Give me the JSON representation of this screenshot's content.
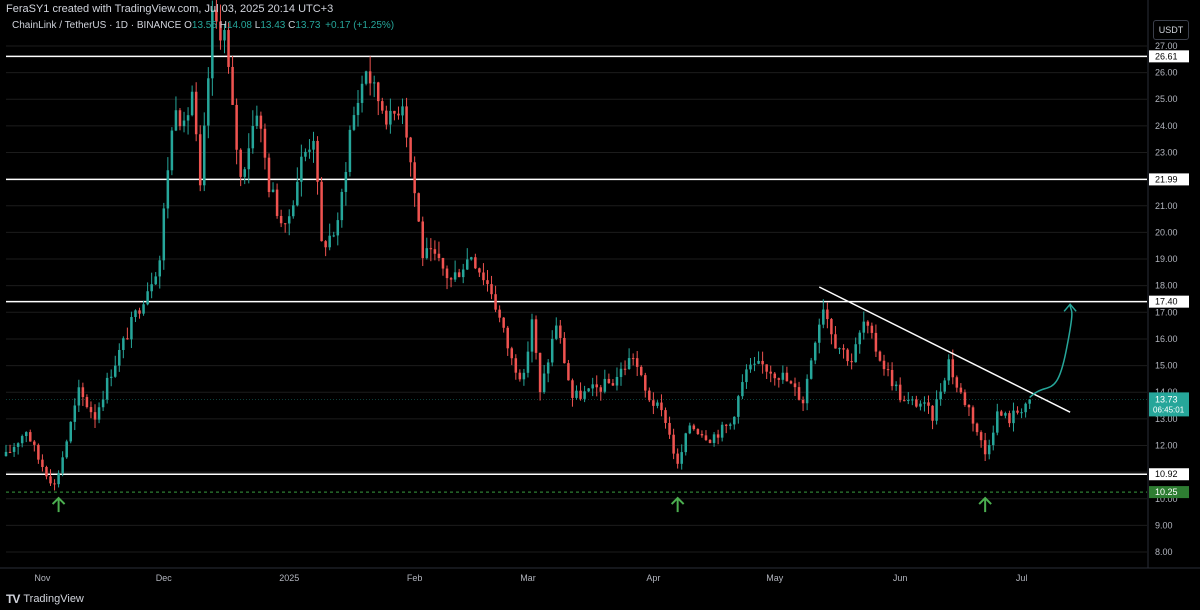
{
  "header": {
    "credit": "FeraSY1 created with TradingView.com, Jul 03, 2025 20:14 UTC+3",
    "symbol": "ChainLink / TetherUS · 1D · BINANCE",
    "open_label": "O",
    "open": "13.55",
    "high_label": "H",
    "high": "14.08",
    "low_label": "L",
    "low": "13.43",
    "close_label": "C",
    "close": "13.73",
    "change": "+0.17 (+1.25%)",
    "currency": "USDT"
  },
  "footer": {
    "brand": "TradingView",
    "logo": "TV"
  },
  "colors": {
    "up": "#26a69a",
    "down": "#ef5350",
    "background": "#000000",
    "grid": "#1c1c1c",
    "level_line": "#ffffff",
    "support_dashed": "#2e7d32",
    "arrow": "#4caf50",
    "curve": "#26a69a"
  },
  "chart_data": {
    "type": "candlestick",
    "title": "ChainLink / TetherUS · 1D · BINANCE",
    "y_axis": {
      "ticks": [
        "27.00",
        "26.00",
        "25.00",
        "24.00",
        "23.00",
        "22.00",
        "21.00",
        "20.00",
        "19.00",
        "18.00",
        "17.00",
        "16.00",
        "15.00",
        "14.00",
        "13.00",
        "12.00",
        "11.00",
        "10.00",
        "9.00",
        "8.00"
      ],
      "range": [
        7.4,
        28.2
      ]
    },
    "x_axis": {
      "ticks": [
        {
          "label": "Nov",
          "date": "2024-11-01"
        },
        {
          "label": "Dec",
          "date": "2024-12-01"
        },
        {
          "label": "2025",
          "date": "2025-01-01"
        },
        {
          "label": "Feb",
          "date": "2025-02-01"
        },
        {
          "label": "Mar",
          "date": "2025-03-01"
        },
        {
          "label": "Apr",
          "date": "2025-04-01"
        },
        {
          "label": "May",
          "date": "2025-05-01"
        },
        {
          "label": "Jun",
          "date": "2025-06-01"
        },
        {
          "label": "Jul",
          "date": "2025-07-01"
        }
      ],
      "range": [
        "2024-10-23",
        "2025-08-01"
      ]
    },
    "price_levels": [
      {
        "value": 26.61,
        "label": "26.61",
        "style": "solid"
      },
      {
        "value": 21.99,
        "label": "21.99",
        "style": "solid"
      },
      {
        "value": 17.4,
        "label": "17.40",
        "style": "solid"
      },
      {
        "value": 10.92,
        "label": "10.92",
        "style": "solid"
      },
      {
        "value": 10.25,
        "label": "10.25",
        "style": "dashed"
      }
    ],
    "current_price": {
      "value": 13.73,
      "label": "13.73",
      "countdown": "06:45:01"
    },
    "trendline": {
      "start": [
        "2025-05-12",
        17.95
      ],
      "end": [
        "2025-07-13",
        13.25
      ]
    },
    "projection_curve": {
      "start": [
        "2025-07-03",
        13.8
      ],
      "end": [
        "2025-07-13",
        17.3
      ]
    },
    "support_arrows": [
      {
        "date": "2024-11-05",
        "value": 10.25
      },
      {
        "date": "2025-04-07",
        "value": 10.25
      },
      {
        "date": "2025-06-22",
        "value": 10.25
      }
    ],
    "anchors": [
      [
        "2024-10-23",
        11.6
      ],
      [
        "2024-10-28",
        12.6
      ],
      [
        "2024-10-31",
        11.5
      ],
      [
        "2024-11-04",
        10.5
      ],
      [
        "2024-11-06",
        11.6
      ],
      [
        "2024-11-10",
        14.0
      ],
      [
        "2024-11-14",
        13.1
      ],
      [
        "2024-11-18",
        14.8
      ],
      [
        "2024-11-22",
        16.2
      ],
      [
        "2024-11-26",
        17.6
      ],
      [
        "2024-11-30",
        19.0
      ],
      [
        "2024-12-02",
        22.5
      ],
      [
        "2024-12-04",
        25.0
      ],
      [
        "2024-12-06",
        23.8
      ],
      [
        "2024-12-08",
        25.3
      ],
      [
        "2024-12-10",
        21.5
      ],
      [
        "2024-12-13",
        28.0
      ],
      [
        "2024-12-16",
        27.5
      ],
      [
        "2024-12-18",
        24.5
      ],
      [
        "2024-12-20",
        22.0
      ],
      [
        "2024-12-24",
        24.7
      ],
      [
        "2024-12-27",
        21.8
      ],
      [
        "2024-12-31",
        20.0
      ],
      [
        "2025-01-04",
        22.7
      ],
      [
        "2025-01-07",
        23.7
      ],
      [
        "2025-01-09",
        19.5
      ],
      [
        "2025-01-13",
        20.2
      ],
      [
        "2025-01-16",
        23.8
      ],
      [
        "2025-01-20",
        26.2
      ],
      [
        "2025-01-22",
        25.3
      ],
      [
        "2025-01-26",
        24.2
      ],
      [
        "2025-01-29",
        25.0
      ],
      [
        "2025-02-03",
        19.2
      ],
      [
        "2025-02-06",
        19.0
      ],
      [
        "2025-02-10",
        18.2
      ],
      [
        "2025-02-15",
        19.2
      ],
      [
        "2025-02-20",
        17.8
      ],
      [
        "2025-02-25",
        15.2
      ],
      [
        "2025-02-28",
        14.5
      ],
      [
        "2025-03-02",
        16.8
      ],
      [
        "2025-03-04",
        13.9
      ],
      [
        "2025-03-08",
        16.6
      ],
      [
        "2025-03-12",
        13.8
      ],
      [
        "2025-03-16",
        14.0
      ],
      [
        "2025-03-22",
        14.4
      ],
      [
        "2025-03-27",
        15.4
      ],
      [
        "2025-03-30",
        14.0
      ],
      [
        "2025-04-04",
        13.0
      ],
      [
        "2025-04-07",
        11.2
      ],
      [
        "2025-04-10",
        12.8
      ],
      [
        "2025-04-15",
        12.3
      ],
      [
        "2025-04-20",
        12.8
      ],
      [
        "2025-04-24",
        14.8
      ],
      [
        "2025-04-28",
        15.0
      ],
      [
        "2025-05-03",
        14.6
      ],
      [
        "2025-05-08",
        13.7
      ],
      [
        "2025-05-11",
        16.1
      ],
      [
        "2025-05-13",
        17.3
      ],
      [
        "2025-05-16",
        15.9
      ],
      [
        "2025-05-20",
        15.2
      ],
      [
        "2025-05-23",
        16.6
      ],
      [
        "2025-05-28",
        15.0
      ],
      [
        "2025-06-02",
        13.6
      ],
      [
        "2025-06-06",
        13.6
      ],
      [
        "2025-06-09",
        13.1
      ],
      [
        "2025-06-13",
        15.2
      ],
      [
        "2025-06-15",
        14.2
      ],
      [
        "2025-06-18",
        13.4
      ],
      [
        "2025-06-22",
        11.7
      ],
      [
        "2025-06-25",
        13.2
      ],
      [
        "2025-06-28",
        13.0
      ],
      [
        "2025-07-03",
        13.73
      ]
    ]
  }
}
